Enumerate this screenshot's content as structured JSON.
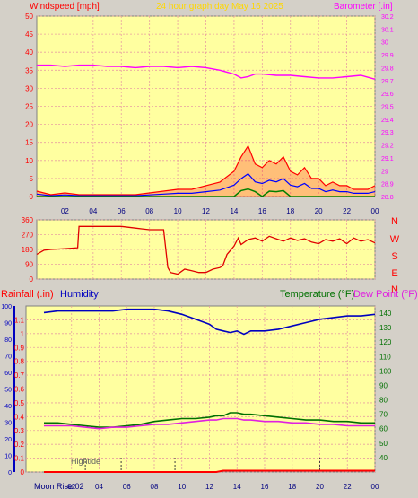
{
  "header": {
    "windspeed_label": "Windspeed [mph]",
    "title": "24 hour graph day   May 16 2025",
    "barometer_label": "Barometer [.in]"
  },
  "footer": {
    "moon_rise": "Moon Rise 02",
    "hightide": "Hightide"
  },
  "colors": {
    "plot_bg": "#ffffa0",
    "frame_bg": "#d4d0c8",
    "title": "#ffd700",
    "wind": "#ff0000",
    "wind_mid": "#0000ff",
    "wind_low": "#008000",
    "barometer": "#ff00ff",
    "direction": "#e00000",
    "rain": "#ff0000",
    "humidity": "#0000c0",
    "temperature": "#007000",
    "dewpoint": "#e020e0"
  },
  "chart_data": [
    {
      "type": "area",
      "title": "24 hour graph day   May 16 2025",
      "xlabel": "",
      "x_ticks": [
        "02",
        "04",
        "06",
        "08",
        "10",
        "12",
        "14",
        "16",
        "18",
        "20",
        "22",
        "00"
      ],
      "left_axis": {
        "label": "Windspeed [mph]",
        "ylim": [
          0,
          50
        ],
        "ticks": [
          0,
          5,
          10,
          15,
          20,
          25,
          30,
          35,
          40,
          45,
          50
        ]
      },
      "right_axis": {
        "label": "Barometer [.in]",
        "ylim": [
          28.8,
          30.2
        ],
        "ticks": [
          "28.8",
          "28.9",
          "29",
          "29.1",
          "29.2",
          "29.3",
          "29.4",
          "29.5",
          "29.6",
          "29.7",
          "29.8",
          "29.9",
          "30",
          "30.1",
          "30.2"
        ]
      },
      "grid": true,
      "series": [
        {
          "name": "Windspeed [mph]",
          "axis": "left",
          "x": [
            0,
            1,
            2,
            3,
            4,
            5,
            6,
            7,
            8,
            9,
            10,
            11,
            12,
            13,
            14,
            14.5,
            15,
            15.5,
            16,
            16.5,
            17,
            17.5,
            18,
            18.5,
            19,
            19.5,
            20,
            20.5,
            21,
            21.5,
            22,
            22.5,
            23,
            23.5,
            24
          ],
          "values": [
            1.5,
            0.5,
            1,
            0.5,
            0.5,
            0.5,
            0.5,
            0.5,
            1,
            1.5,
            2,
            2,
            3,
            4,
            7,
            11,
            14,
            9,
            8,
            10,
            9,
            11,
            7,
            6,
            8,
            5,
            5,
            3,
            4,
            3,
            3,
            2,
            2,
            2,
            3
          ]
        },
        {
          "name": "Barometer [.in]",
          "axis": "right",
          "x": [
            0,
            1,
            2,
            3,
            4,
            5,
            6,
            7,
            8,
            9,
            10,
            11,
            12,
            13,
            14,
            14.5,
            15,
            15.5,
            16,
            17,
            18,
            19,
            20,
            21,
            22,
            23,
            24
          ],
          "values": [
            29.82,
            29.82,
            29.81,
            29.82,
            29.82,
            29.81,
            29.81,
            29.8,
            29.81,
            29.81,
            29.8,
            29.81,
            29.8,
            29.78,
            29.75,
            29.72,
            29.73,
            29.75,
            29.75,
            29.74,
            29.74,
            29.73,
            29.72,
            29.72,
            29.73,
            29.74,
            29.71
          ]
        }
      ]
    },
    {
      "type": "line",
      "title": "",
      "x_ticks": [
        "02",
        "04",
        "06",
        "08",
        "10",
        "12",
        "14",
        "16",
        "18",
        "20",
        "22",
        "00"
      ],
      "left_axis": {
        "ylim": [
          0,
          360
        ],
        "ticks": [
          0,
          90,
          180,
          270,
          360
        ]
      },
      "right_axis": {
        "labels": [
          "N",
          "W",
          "S",
          "E",
          "N"
        ]
      },
      "grid": true,
      "series": [
        {
          "name": "",
          "x": [
            0,
            0.5,
            1,
            2,
            2.9,
            3,
            4,
            5,
            6,
            7,
            7.5,
            8,
            8.5,
            9,
            9.3,
            9.5,
            10,
            10.5,
            11,
            11.5,
            12,
            12.5,
            13,
            13.2,
            13.5,
            14,
            14.3,
            14.5,
            15,
            15.5,
            16,
            16.5,
            17,
            17.5,
            18,
            18.5,
            19,
            19.5,
            20,
            20.5,
            21,
            21.5,
            22,
            22.5,
            23,
            23.5,
            24
          ],
          "values": [
            150,
            175,
            180,
            185,
            190,
            320,
            320,
            320,
            320,
            310,
            305,
            300,
            300,
            300,
            70,
            40,
            30,
            60,
            50,
            40,
            40,
            60,
            70,
            80,
            150,
            200,
            250,
            210,
            240,
            250,
            230,
            260,
            245,
            230,
            250,
            235,
            245,
            225,
            215,
            240,
            230,
            245,
            215,
            250,
            230,
            240,
            220
          ]
        }
      ]
    },
    {
      "type": "line",
      "title": "",
      "x_ticks": [
        "02",
        "04",
        "06",
        "08",
        "10",
        "12",
        "14",
        "16",
        "18",
        "20",
        "22",
        "00"
      ],
      "left_axis_rain": {
        "label": "Rainfall (.in)",
        "ylim": [
          0,
          1.2
        ],
        "ticks": [
          "0",
          "0.1",
          "0.2",
          "0.3",
          "0.4",
          "0.5",
          "0.6",
          "0.7",
          "0.8",
          "0.9",
          "1",
          "1.1"
        ]
      },
      "left_axis_humidity": {
        "label": "Humidity",
        "ylim": [
          0,
          100
        ],
        "ticks": [
          0,
          10,
          20,
          30,
          40,
          50,
          60,
          70,
          80,
          90,
          100
        ]
      },
      "right_axis": {
        "label": "Temperature (°F) Dew Point (°F)",
        "ylim": [
          30,
          145
        ],
        "ticks": [
          40,
          50,
          60,
          70,
          80,
          90,
          100,
          110,
          120,
          130,
          140
        ]
      },
      "grid": true,
      "series": [
        {
          "name": "Rainfall (.in)",
          "axis": "rain",
          "x": [
            0,
            12.5,
            13,
            24
          ],
          "values": [
            0,
            0,
            0.01,
            0.01
          ]
        },
        {
          "name": "Humidity",
          "axis": "humidity",
          "x": [
            0,
            1,
            2,
            3,
            4,
            5,
            6,
            7,
            8,
            9,
            10,
            11,
            12,
            12.5,
            13,
            13.5,
            14,
            14.5,
            15,
            16,
            17,
            18,
            19,
            20,
            21,
            22,
            23,
            24
          ],
          "values": [
            96,
            97,
            97,
            97,
            97,
            97,
            98,
            98,
            98,
            97,
            95,
            92,
            89,
            86,
            85,
            84,
            85,
            83,
            85,
            85,
            86,
            88,
            90,
            92,
            93,
            94,
            94,
            95
          ]
        },
        {
          "name": "Temperature (°F)",
          "axis": "right",
          "x": [
            0,
            1,
            2,
            3,
            4,
            5,
            6,
            7,
            8,
            9,
            10,
            11,
            12,
            12.5,
            13,
            13.5,
            14,
            14.5,
            15,
            16,
            17,
            18,
            19,
            20,
            21,
            22,
            23,
            24
          ],
          "values": [
            64,
            64,
            63,
            62,
            61,
            61,
            62,
            63,
            65,
            66,
            67,
            67,
            68,
            69,
            69,
            71,
            71,
            70,
            70,
            69,
            68,
            67,
            66,
            66,
            65,
            65,
            64,
            64
          ]
        },
        {
          "name": "Dew Point (°F)",
          "axis": "right",
          "x": [
            0,
            1,
            2,
            3,
            4,
            5,
            6,
            7,
            8,
            9,
            10,
            11,
            12,
            12.5,
            13,
            13.5,
            14,
            14.5,
            15,
            16,
            17,
            18,
            19,
            20,
            21,
            22,
            23,
            24
          ],
          "values": [
            62,
            62,
            62,
            61,
            60,
            61,
            61,
            62,
            63,
            63,
            64,
            65,
            66,
            66,
            67,
            67,
            67,
            66,
            66,
            65,
            65,
            64,
            64,
            63,
            63,
            62,
            62,
            62
          ]
        }
      ]
    }
  ]
}
